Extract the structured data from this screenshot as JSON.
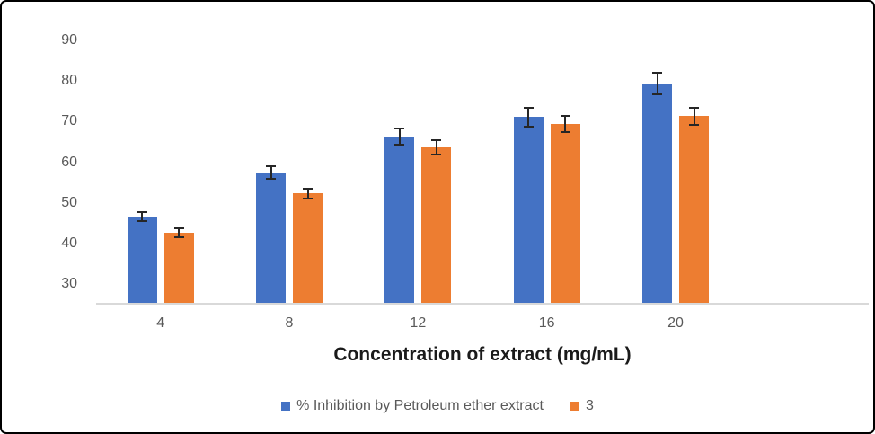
{
  "chart_data": {
    "type": "bar",
    "title": "",
    "xlabel": "Concentration of extract (mg/mL)",
    "ylabel": "",
    "categories": [
      4,
      8,
      12,
      16,
      20
    ],
    "series": [
      {
        "name": "% Inhibition by Petroleum ether extract",
        "color": "#4472C4",
        "values": [
          46.7,
          57.5,
          66.2,
          71.1,
          79.3
        ],
        "errors": [
          1.3,
          1.8,
          2.2,
          2.5,
          2.9
        ]
      },
      {
        "name": "3",
        "color": "#ED7D31",
        "values": [
          42.7,
          52.3,
          63.7,
          69.4,
          71.3
        ],
        "errors": [
          1.3,
          1.5,
          2.0,
          2.3,
          2.3
        ]
      }
    ],
    "ylim": [
      25,
      95
    ],
    "yticks": [
      30,
      40,
      50,
      60,
      70,
      80,
      90
    ],
    "grid": false,
    "error_bars": true,
    "legend_position": "bottom",
    "category_slots": 6
  },
  "colors": {
    "axis_line": "#D9D9D9",
    "tick_text": "#595959",
    "legend_text": "#595959",
    "error_bar": "#262626",
    "axis_title_text": "#1A1A1A",
    "frame_border": "#000000",
    "background": "#FFFFFF"
  }
}
